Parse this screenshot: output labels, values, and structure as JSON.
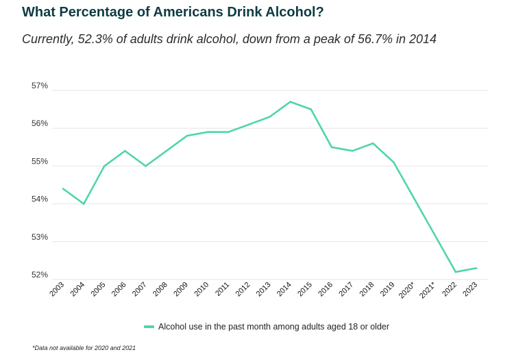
{
  "title": "What Percentage of Americans Drink Alcohol?",
  "subtitle": "Currently, 52.3% of adults drink alcohol, down from a peak of 56.7% in 2014",
  "footnote": "*Data not available for 2020 and 2021",
  "colors": {
    "title": "#0e3b43",
    "line": "#4fd6a3",
    "grid": "#e6e6e6"
  },
  "chart_data": {
    "type": "line",
    "title": "",
    "xlabel": "",
    "ylabel": "",
    "categories": [
      "2003",
      "2004",
      "2005",
      "2006",
      "2007",
      "2008",
      "2009",
      "2010",
      "2011",
      "2012",
      "2013",
      "2014",
      "2015",
      "2016",
      "2017",
      "2018",
      "2019",
      "2020*",
      "2021*",
      "2022",
      "2023"
    ],
    "y_ticks": [
      "52%",
      "53%",
      "54%",
      "55%",
      "56%",
      "57%"
    ],
    "ylim": [
      52,
      57
    ],
    "grid": true,
    "legend_position": "bottom",
    "series": [
      {
        "name": "Alcohol use in the past month among adults aged 18 or older",
        "values": [
          54.4,
          54.0,
          55.0,
          55.4,
          55.0,
          55.4,
          55.8,
          55.9,
          55.9,
          56.1,
          56.3,
          56.7,
          56.5,
          55.5,
          55.4,
          55.6,
          55.1,
          null,
          null,
          52.2,
          52.3
        ]
      }
    ]
  }
}
